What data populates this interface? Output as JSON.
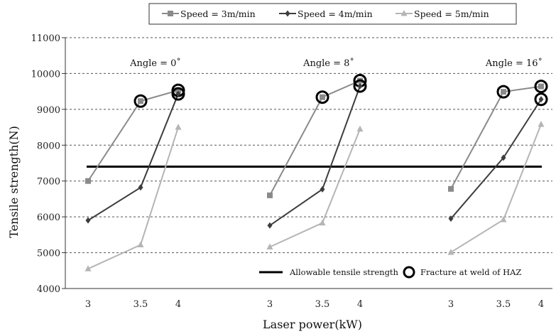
{
  "chart_data": {
    "type": "line",
    "xlabel": "Laser power(kW)",
    "ylabel": "Tensile strength(N)",
    "ylim": [
      4000,
      11000
    ],
    "yticks": [
      "4000",
      "5000",
      "6000",
      "7000",
      "8000",
      "9000",
      "10000",
      "11000"
    ],
    "xticks": [
      "3",
      "3.5",
      "4"
    ],
    "grid": "horizontal-dashed",
    "legend_position": "top",
    "reference_line": {
      "name": "Allowable tensile strength",
      "value": 7400
    },
    "fracture_marker_label": "Fracture at weld of HAZ",
    "groups": [
      {
        "label": "Angle = 0˚",
        "series": [
          {
            "name": "Speed = 3m/min",
            "x": [
              3,
              3.5,
              4
            ],
            "y": [
              7000,
              9230,
              9530
            ],
            "fracture": [
              false,
              true,
              true
            ]
          },
          {
            "name": "Speed = 4m/min",
            "x": [
              3,
              3.5,
              4
            ],
            "y": [
              5900,
              6820,
              9430
            ],
            "fracture": [
              false,
              false,
              true
            ]
          },
          {
            "name": "Speed = 5m/min",
            "x": [
              3,
              3.5,
              4
            ],
            "y": [
              4550,
              5220,
              8500
            ],
            "fracture": [
              false,
              false,
              false
            ]
          }
        ]
      },
      {
        "label": "Angle = 8˚",
        "series": [
          {
            "name": "Speed = 3m/min",
            "x": [
              3,
              3.5,
              4
            ],
            "y": [
              6600,
              9340,
              9800
            ],
            "fracture": [
              false,
              true,
              true
            ]
          },
          {
            "name": "Speed = 4m/min",
            "x": [
              3,
              3.5,
              4
            ],
            "y": [
              5760,
              6770,
              9650
            ],
            "fracture": [
              false,
              false,
              true
            ]
          },
          {
            "name": "Speed = 5m/min",
            "x": [
              3,
              3.5,
              4
            ],
            "y": [
              5160,
              5830,
              8450
            ],
            "fracture": [
              false,
              false,
              false
            ]
          }
        ]
      },
      {
        "label": "Angle = 16˚",
        "series": [
          {
            "name": "Speed = 3m/min",
            "x": [
              3,
              3.5,
              4
            ],
            "y": [
              6780,
              9490,
              9640
            ],
            "fracture": [
              false,
              true,
              true
            ]
          },
          {
            "name": "Speed = 4m/min",
            "x": [
              3,
              3.5,
              4
            ],
            "y": [
              5950,
              7650,
              9280
            ],
            "fracture": [
              false,
              false,
              true
            ]
          },
          {
            "name": "Speed = 5m/min",
            "x": [
              3,
              3.5,
              4
            ],
            "y": [
              5010,
              5920,
              8580
            ],
            "fracture": [
              false,
              false,
              false
            ]
          }
        ]
      }
    ],
    "legend": [
      {
        "name": "Speed = 3m/min",
        "marker": "square",
        "color": "#8a8a8a"
      },
      {
        "name": "Speed = 4m/min",
        "marker": "diamond",
        "color": "#3d3d3d"
      },
      {
        "name": "Speed = 5m/min",
        "marker": "triangle",
        "color": "#b5b5b5"
      }
    ]
  }
}
